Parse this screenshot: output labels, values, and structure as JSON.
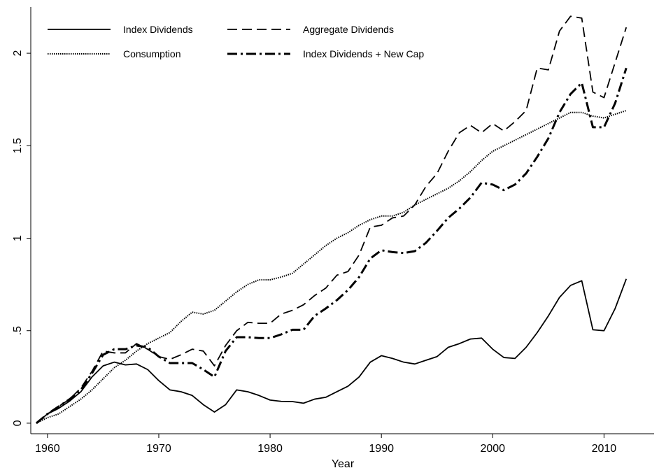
{
  "chart_data": {
    "type": "line",
    "x_label": "Year",
    "x": [
      1959,
      1960,
      1961,
      1962,
      1963,
      1964,
      1965,
      1966,
      1967,
      1968,
      1969,
      1970,
      1971,
      1972,
      1973,
      1974,
      1975,
      1976,
      1977,
      1978,
      1979,
      1980,
      1981,
      1982,
      1983,
      1984,
      1985,
      1986,
      1987,
      1988,
      1989,
      1990,
      1991,
      1992,
      1993,
      1994,
      1995,
      1996,
      1997,
      1998,
      1999,
      2000,
      2001,
      2002,
      2003,
      2004,
      2005,
      2006,
      2007,
      2008,
      2009,
      2010,
      2011,
      2012
    ],
    "xlim": [
      1958.5,
      2014.5
    ],
    "xticks": [
      1960,
      1970,
      1980,
      1990,
      2000,
      2010
    ],
    "ylim": [
      -0.057,
      2.25
    ],
    "yticks": [
      0,
      {
        "value": 0.5,
        "label": ".5"
      },
      1,
      1.5,
      2
    ],
    "series": [
      {
        "name": "Index Dividends",
        "color": "#000000",
        "style": "solid",
        "values": [
          0,
          0.05,
          0.08,
          0.12,
          0.17,
          0.25,
          0.31,
          0.33,
          0.315,
          0.32,
          0.29,
          0.23,
          0.18,
          0.17,
          0.15,
          0.1,
          0.06,
          0.1,
          0.18,
          0.17,
          0.15,
          0.125,
          0.118,
          0.117,
          0.108,
          0.13,
          0.14,
          0.17,
          0.2,
          0.25,
          0.33,
          0.365,
          0.35,
          0.33,
          0.32,
          0.34,
          0.36,
          0.41,
          0.43,
          0.455,
          0.46,
          0.4,
          0.355,
          0.35,
          0.41,
          0.49,
          0.58,
          0.68,
          0.745,
          0.77,
          0.505,
          0.5,
          0.62,
          0.78
        ]
      },
      {
        "name": "Aggregate Dividends",
        "color": "#000000",
        "style": "dashed",
        "values": [
          0,
          0.05,
          0.09,
          0.13,
          0.19,
          0.28,
          0.39,
          0.38,
          0.38,
          0.43,
          0.4,
          0.36,
          0.345,
          0.37,
          0.4,
          0.39,
          0.31,
          0.42,
          0.5,
          0.545,
          0.54,
          0.54,
          0.59,
          0.61,
          0.64,
          0.69,
          0.73,
          0.8,
          0.82,
          0.91,
          1.06,
          1.07,
          1.11,
          1.12,
          1.18,
          1.28,
          1.35,
          1.47,
          1.57,
          1.61,
          1.57,
          1.62,
          1.58,
          1.63,
          1.69,
          1.92,
          1.91,
          2.12,
          2.2,
          2.19,
          1.79,
          1.76,
          1.95,
          2.14
        ]
      },
      {
        "name": "Consumption",
        "color": "#000000",
        "style": "dotted",
        "values": [
          0,
          0.03,
          0.05,
          0.09,
          0.13,
          0.18,
          0.24,
          0.3,
          0.34,
          0.39,
          0.43,
          0.46,
          0.49,
          0.55,
          0.6,
          0.59,
          0.61,
          0.66,
          0.71,
          0.75,
          0.775,
          0.775,
          0.79,
          0.81,
          0.86,
          0.91,
          0.96,
          1.0,
          1.03,
          1.07,
          1.1,
          1.12,
          1.12,
          1.14,
          1.18,
          1.21,
          1.24,
          1.27,
          1.31,
          1.36,
          1.42,
          1.47,
          1.5,
          1.53,
          1.56,
          1.59,
          1.62,
          1.65,
          1.68,
          1.68,
          1.66,
          1.65,
          1.67,
          1.69
        ]
      },
      {
        "name": "Index Dividends + New Cap",
        "color": "#000000",
        "style": "dashdot",
        "values": [
          0,
          0.05,
          0.09,
          0.13,
          0.18,
          0.27,
          0.37,
          0.4,
          0.4,
          0.42,
          0.41,
          0.36,
          0.325,
          0.325,
          0.325,
          0.29,
          0.25,
          0.39,
          0.465,
          0.465,
          0.46,
          0.46,
          0.48,
          0.505,
          0.505,
          0.58,
          0.62,
          0.665,
          0.72,
          0.79,
          0.89,
          0.935,
          0.925,
          0.92,
          0.93,
          0.975,
          1.04,
          1.11,
          1.16,
          1.22,
          1.3,
          1.29,
          1.26,
          1.29,
          1.35,
          1.44,
          1.54,
          1.68,
          1.78,
          1.84,
          1.6,
          1.6,
          1.73,
          1.92
        ]
      }
    ]
  }
}
